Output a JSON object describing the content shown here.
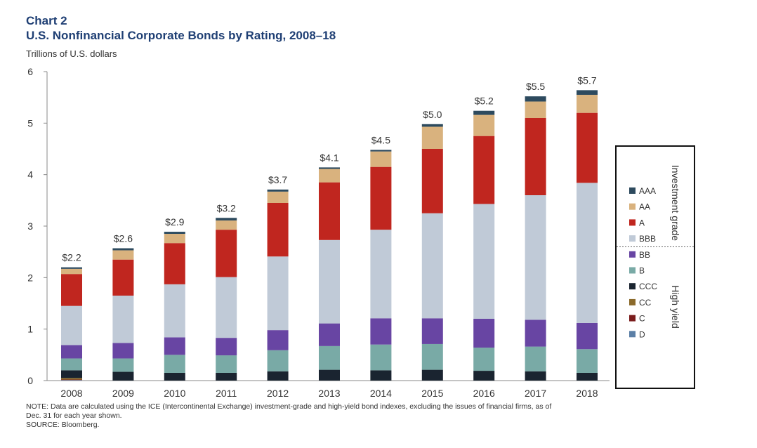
{
  "chart_data": {
    "type": "bar",
    "stacked": true,
    "label": "Chart 2",
    "title": "U.S. Nonfinancial Corporate Bonds by Rating, 2008–18",
    "ylabel": "Trillions of U.S. dollars",
    "xlabel": "",
    "ylim": [
      0,
      6
    ],
    "yticks": [
      "0",
      "1",
      "2",
      "3",
      "4",
      "5",
      "6"
    ],
    "grid": false,
    "legend": "right",
    "categories": [
      "2008",
      "2009",
      "2010",
      "2011",
      "2012",
      "2013",
      "2014",
      "2015",
      "2016",
      "2017",
      "2018"
    ],
    "totals": [
      "$2.2",
      "$2.6",
      "$2.9",
      "$3.2",
      "$3.7",
      "$4.1",
      "$4.5",
      "$5.0",
      "$5.2",
      "$5.5",
      "$5.7"
    ],
    "series": [
      {
        "name": "D",
        "color": "#5b7fa6",
        "values": [
          0.01,
          0.0,
          0.0,
          0.0,
          0.0,
          0.0,
          0.0,
          0.0,
          0.0,
          0.0,
          0.0
        ]
      },
      {
        "name": "C",
        "color": "#7a1c1c",
        "values": [
          0.01,
          0.0,
          0.0,
          0.0,
          0.0,
          0.0,
          0.0,
          0.0,
          0.0,
          0.0,
          0.0
        ]
      },
      {
        "name": "CC",
        "color": "#8b6a2b",
        "values": [
          0.03,
          0.0,
          0.0,
          0.0,
          0.0,
          0.0,
          0.0,
          0.0,
          0.0,
          0.0,
          0.0
        ]
      },
      {
        "name": "CCC",
        "color": "#1a2430",
        "values": [
          0.15,
          0.17,
          0.15,
          0.15,
          0.18,
          0.21,
          0.2,
          0.21,
          0.19,
          0.18,
          0.15
        ]
      },
      {
        "name": "B",
        "color": "#79aaa6",
        "values": [
          0.23,
          0.26,
          0.35,
          0.34,
          0.41,
          0.46,
          0.5,
          0.5,
          0.45,
          0.48,
          0.46
        ]
      },
      {
        "name": "BB",
        "color": "#6845a3",
        "values": [
          0.26,
          0.3,
          0.34,
          0.34,
          0.39,
          0.44,
          0.51,
          0.5,
          0.56,
          0.52,
          0.51
        ]
      },
      {
        "name": "BBB",
        "color": "#c0cad7",
        "values": [
          0.76,
          0.92,
          1.03,
          1.18,
          1.43,
          1.62,
          1.72,
          2.04,
          2.23,
          2.42,
          2.72
        ]
      },
      {
        "name": "A",
        "color": "#c0261f",
        "values": [
          0.62,
          0.7,
          0.8,
          0.92,
          1.04,
          1.12,
          1.22,
          1.25,
          1.32,
          1.5,
          1.36
        ]
      },
      {
        "name": "AA",
        "color": "#d9b27e",
        "values": [
          0.1,
          0.18,
          0.18,
          0.18,
          0.22,
          0.26,
          0.3,
          0.43,
          0.41,
          0.32,
          0.35
        ]
      },
      {
        "name": "AAA",
        "color": "#2d4a5e",
        "values": [
          0.03,
          0.04,
          0.04,
          0.05,
          0.04,
          0.03,
          0.03,
          0.05,
          0.08,
          0.1,
          0.09
        ]
      }
    ],
    "legend_entries": [
      "AAA",
      "AA",
      "A",
      "BBB",
      "BB",
      "B",
      "CCC",
      "CC",
      "C",
      "D"
    ],
    "legend_groups": [
      {
        "label": "Investment grade",
        "members": [
          "AAA",
          "AA",
          "A",
          "BBB"
        ]
      },
      {
        "label": "High yield",
        "members": [
          "BB",
          "B",
          "CCC",
          "CC",
          "C",
          "D"
        ]
      }
    ]
  },
  "footer": {
    "note_line1": "NOTE:  Data are calculated using the ICE (Intercontinental Exchange) investment-grade and high-yield bond indexes, excluding the issues of financial firms, as of",
    "note_line2": "Dec. 31 for each year shown.",
    "source": "SOURCE:  Bloomberg."
  }
}
